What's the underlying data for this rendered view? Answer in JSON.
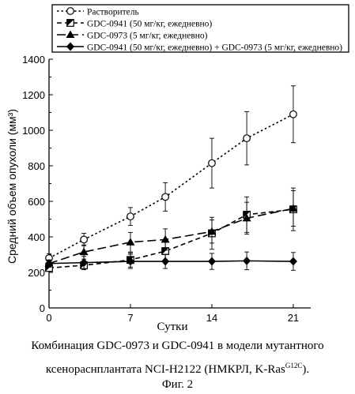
{
  "chart_data": {
    "type": "line",
    "title": "",
    "xlabel": "Сутки",
    "ylabel": "Средний объем опухоли (мм³)",
    "xlim": [
      0,
      22.5
    ],
    "ylim": [
      0,
      1400
    ],
    "xticks": [
      0,
      7,
      14,
      21
    ],
    "yticks": [
      0,
      200,
      400,
      600,
      800,
      1000,
      1200,
      1400
    ],
    "grid": false,
    "legend_position": "top",
    "series": [
      {
        "name": "Растворитель",
        "marker": "circle-open",
        "line": "dotted",
        "color": "#000000",
        "x": [
          0,
          3,
          7,
          10,
          14,
          17,
          21
        ],
        "y": [
          280,
          385,
          515,
          625,
          815,
          955,
          1090
        ],
        "err": [
          25,
          35,
          50,
          80,
          140,
          150,
          160
        ]
      },
      {
        "name": "GDC-0941 (50 мг/кг, ежедневно)",
        "marker": "square-half",
        "line": "dashed",
        "color": "#000000",
        "x": [
          0,
          3,
          7,
          10,
          14,
          17,
          21
        ],
        "y": [
          225,
          240,
          270,
          320,
          420,
          525,
          555
        ],
        "err": [
          15,
          25,
          40,
          55,
          90,
          100,
          120
        ]
      },
      {
        "name": "GDC-0973 (5 мг/кг, ежедневно)",
        "marker": "triangle",
        "line": "long-dash",
        "color": "#000000",
        "x": [
          0,
          3,
          7,
          10,
          14,
          17,
          21
        ],
        "y": [
          250,
          315,
          370,
          385,
          430,
          505,
          560
        ],
        "err": [
          20,
          40,
          55,
          60,
          65,
          90,
          100
        ]
      },
      {
        "name": "GDC-0941 (50 мг/кг, ежедневно) + GDC-0973 (5 мг/кг, ежедневно)",
        "marker": "diamond",
        "line": "solid",
        "color": "#000000",
        "x": [
          0,
          3,
          7,
          10,
          14,
          17,
          21
        ],
        "y": [
          250,
          255,
          262,
          262,
          262,
          265,
          262
        ],
        "err": [
          20,
          35,
          40,
          40,
          45,
          50,
          50
        ]
      }
    ]
  },
  "caption": {
    "line1": "Комбинация GDC-0973 и GDC-0941 в модели мутантного",
    "line2_main": "ксенораснплантата NCI-H2122 (НМКРЛ, K-Ras",
    "line2_sup": "G12C",
    "line2_end": ").",
    "fig": "Фиг. 2"
  }
}
